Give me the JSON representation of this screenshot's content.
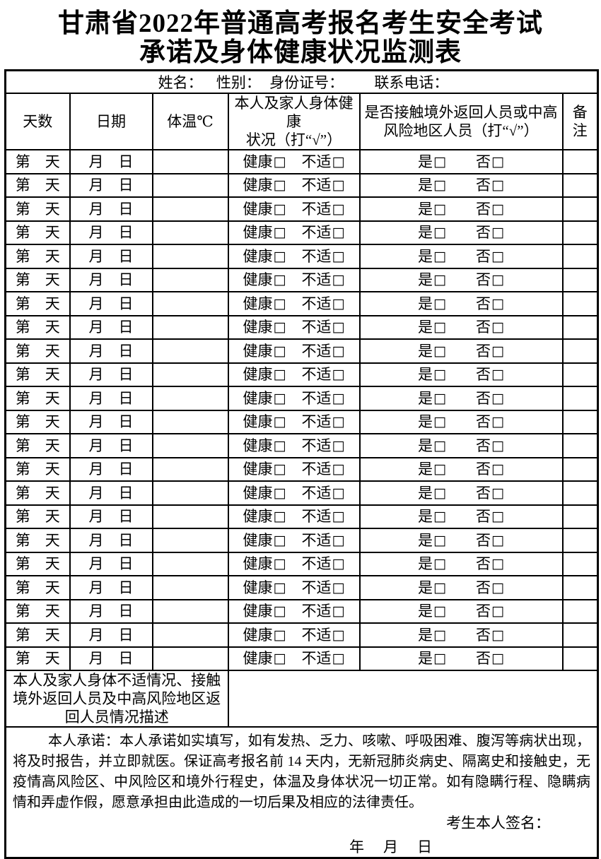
{
  "title": {
    "line1": "甘肃省2022年普通高考报名考生安全考试",
    "line2": "承诺及身体健康状况监测表"
  },
  "info_row": {
    "name_label": "姓名：",
    "gender_label": "性别：",
    "id_label": "身份证号：",
    "phone_label": "联系电话："
  },
  "table": {
    "headers": [
      {
        "name": "days",
        "lines": [
          "天数"
        ]
      },
      {
        "name": "date",
        "lines": [
          "日期"
        ]
      },
      {
        "name": "temperature",
        "lines": [
          "体温℃"
        ]
      },
      {
        "name": "health",
        "lines": [
          "本人及家人身体健康",
          "状况（打“√”）"
        ]
      },
      {
        "name": "contact",
        "lines": [
          "是否接触境外返回人员或中高",
          "风险地区人员（打“√”）"
        ]
      },
      {
        "name": "remark",
        "lines": [
          "备",
          "注"
        ]
      }
    ],
    "row_count": 22,
    "row_template": {
      "day": "第　天",
      "date": "月　日",
      "temperature": "",
      "health_label": "健康",
      "unwell_label": "不适",
      "yes_label": "是",
      "no_label": "否",
      "checkbox": "□",
      "remark": ""
    }
  },
  "description": {
    "label": "本人及家人身体不适情况、接触境外返回人员及中高风险地区返回人员情况描述"
  },
  "commitment": {
    "text": "本人承诺：本人承诺如实填写，如有发热、乏力、咳嗽、呼吸困难、腹泻等病状出现，将及时报告，并立即就医。保证高考报名前 14 天内，无新冠肺炎病史、隔离史和接触史，无疫情高风险区、中风险区和境外行程史，体温及身体状况一切正常。如有隐瞒行程、隐瞒病情和弄虚作假，愿意承担由此造成的一切后果及相应的法律责任。",
    "signature_label": "考生本人签名：",
    "date_line": "年　月　日"
  }
}
